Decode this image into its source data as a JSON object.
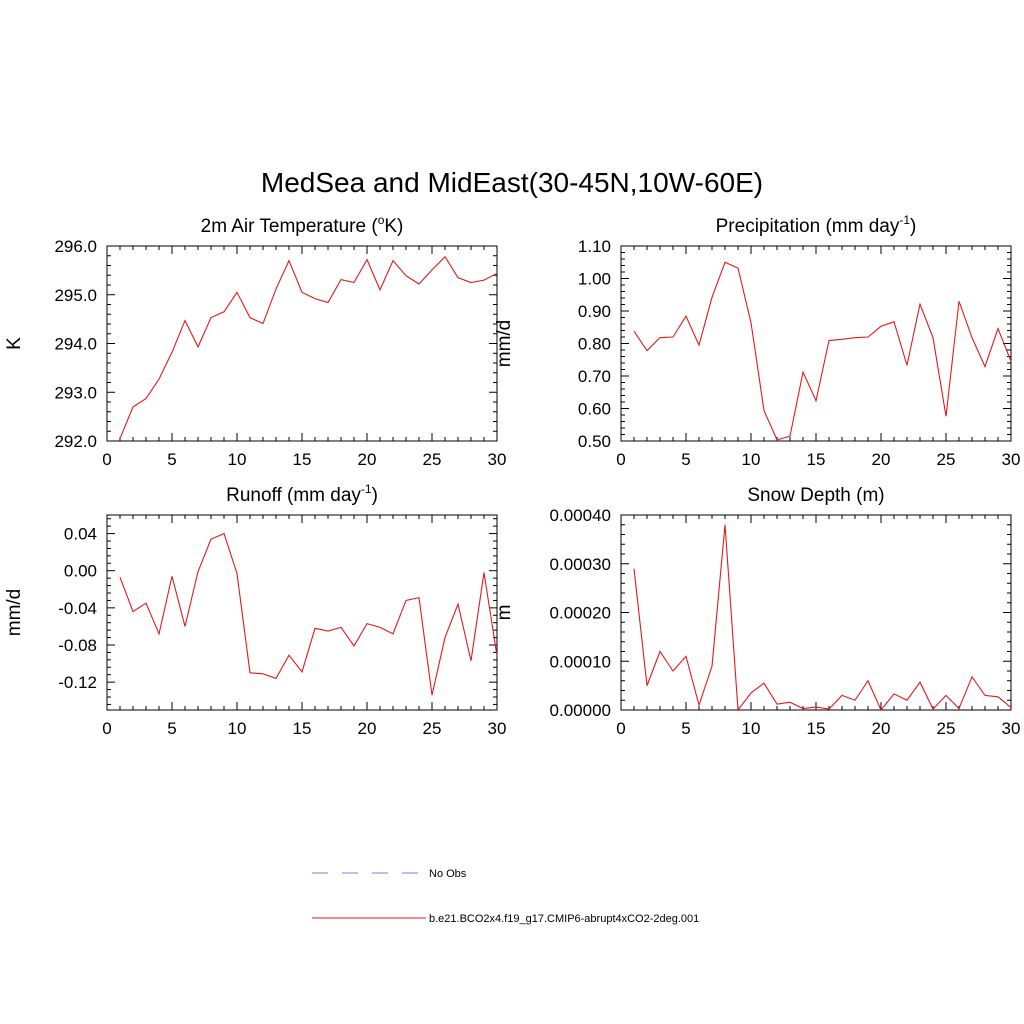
{
  "figure": {
    "title": "MedSea and MidEast(30-45N,10W-60E)"
  },
  "colors": {
    "model_line": "#e31a1c",
    "obs_line": "#9999ee",
    "axis": "#000000"
  },
  "legend": {
    "entries": [
      {
        "label": "No Obs",
        "style": "dashed",
        "color": "#9999ee"
      },
      {
        "label": "b.e21.BCO2x4.f19_g17.CMIP6-abrupt4xCO2-2deg.001",
        "style": "solid",
        "color": "#e31a1c"
      }
    ]
  },
  "chart_data": [
    {
      "type": "line",
      "title_main": "2m Air Temperature (",
      "title_sup": "o",
      "title_end": "K)",
      "ylabel": "K",
      "xlim": [
        0,
        30
      ],
      "ylim": [
        292.0,
        296.0
      ],
      "xticks": [
        0,
        5,
        10,
        15,
        20,
        25,
        30
      ],
      "yticks": [
        292.0,
        293.0,
        294.0,
        295.0,
        296.0
      ],
      "ytick_labels": [
        "292.0",
        "293.0",
        "294.0",
        "295.0",
        "296.0"
      ],
      "x": [
        1,
        2,
        3,
        4,
        5,
        6,
        7,
        8,
        9,
        10,
        11,
        12,
        13,
        14,
        15,
        16,
        17,
        18,
        19,
        20,
        21,
        22,
        23,
        24,
        25,
        26,
        27,
        28,
        29,
        30
      ],
      "series": [
        {
          "values": [
            292.05,
            292.7,
            292.87,
            293.27,
            293.82,
            294.47,
            293.93,
            294.53,
            294.65,
            295.05,
            294.53,
            294.41,
            295.12,
            295.7,
            295.05,
            294.92,
            294.84,
            295.31,
            295.25,
            295.72,
            295.1,
            295.7,
            295.39,
            295.22,
            295.51,
            295.78,
            295.35,
            295.25,
            295.3,
            295.44
          ]
        }
      ]
    },
    {
      "type": "line",
      "title_main": "Precipitation (mm day",
      "title_sup": "-1",
      "title_end": ")",
      "ylabel": "mm/d",
      "xlim": [
        0,
        30
      ],
      "ylim": [
        0.5,
        1.1
      ],
      "xticks": [
        0,
        5,
        10,
        15,
        20,
        25,
        30
      ],
      "yticks": [
        0.5,
        0.6,
        0.7,
        0.8,
        0.9,
        1.0,
        1.1
      ],
      "ytick_labels": [
        "0.50",
        "0.60",
        "0.70",
        "0.80",
        "0.90",
        "1.00",
        "1.10"
      ],
      "x": [
        1,
        2,
        3,
        4,
        5,
        6,
        7,
        8,
        9,
        10,
        11,
        12,
        13,
        14,
        15,
        16,
        17,
        18,
        19,
        20,
        21,
        22,
        23,
        24,
        25,
        26,
        27,
        28,
        29,
        30
      ],
      "series": [
        {
          "values": [
            0.838,
            0.778,
            0.818,
            0.82,
            0.884,
            0.795,
            0.942,
            1.05,
            1.032,
            0.864,
            0.594,
            0.503,
            0.515,
            0.712,
            0.624,
            0.809,
            0.813,
            0.818,
            0.82,
            0.853,
            0.867,
            0.733,
            0.921,
            0.818,
            0.576,
            0.93,
            0.818,
            0.729,
            0.846,
            0.745
          ]
        }
      ]
    },
    {
      "type": "line",
      "title_main": "Runoff (mm day",
      "title_sup": "-1",
      "title_end": ")",
      "ylabel": "mm/d",
      "xlim": [
        0,
        30
      ],
      "ylim": [
        -0.15,
        0.06
      ],
      "xticks": [
        0,
        5,
        10,
        15,
        20,
        25,
        30
      ],
      "yticks": [
        -0.12,
        -0.08,
        -0.04,
        0.0,
        0.04
      ],
      "ytick_labels": [
        "-0.12",
        "-0.08",
        "-0.04",
        "0.00",
        "0.04"
      ],
      "x": [
        1,
        2,
        3,
        4,
        5,
        6,
        7,
        8,
        9,
        10,
        11,
        12,
        13,
        14,
        15,
        16,
        17,
        18,
        19,
        20,
        21,
        22,
        23,
        24,
        25,
        26,
        27,
        28,
        29,
        30
      ],
      "series": [
        {
          "values": [
            -0.007,
            -0.044,
            -0.035,
            -0.068,
            -0.006,
            -0.06,
            -0.001,
            0.034,
            0.04,
            -0.003,
            -0.11,
            -0.111,
            -0.116,
            -0.091,
            -0.109,
            -0.062,
            -0.065,
            -0.061,
            -0.081,
            -0.057,
            -0.061,
            -0.068,
            -0.032,
            -0.029,
            -0.134,
            -0.072,
            -0.036,
            -0.097,
            -0.002,
            -0.092
          ]
        }
      ]
    },
    {
      "type": "line",
      "title_main": "Snow Depth (m)",
      "title_sup": "",
      "title_end": "",
      "ylabel": "m",
      "xlim": [
        0,
        30
      ],
      "ylim": [
        0.0,
        0.0004
      ],
      "xticks": [
        0,
        5,
        10,
        15,
        20,
        25,
        30
      ],
      "yticks": [
        0.0,
        0.0001,
        0.0002,
        0.0003,
        0.0004
      ],
      "ytick_labels": [
        "0.00000",
        "0.00010",
        "0.00020",
        "0.00030",
        "0.00040"
      ],
      "x": [
        1,
        2,
        3,
        4,
        5,
        6,
        7,
        8,
        9,
        10,
        11,
        12,
        13,
        14,
        15,
        16,
        17,
        18,
        19,
        20,
        21,
        22,
        23,
        24,
        25,
        26,
        27,
        28,
        29,
        30
      ],
      "series": [
        {
          "values": [
            0.00029,
            5e-05,
            0.00012,
            8e-05,
            0.00011,
            1e-05,
            9e-05,
            0.00038,
            0.0,
            3.5e-05,
            5.5e-05,
            1.2e-05,
            1.6e-05,
            3e-06,
            6e-06,
            2e-06,
            3e-05,
            2e-05,
            6e-05,
            0.0,
            3.3e-05,
            2e-05,
            5.7e-05,
            2e-06,
            3e-05,
            3e-06,
            6.8e-05,
            3e-05,
            2.7e-05,
            5e-06
          ]
        }
      ]
    }
  ]
}
